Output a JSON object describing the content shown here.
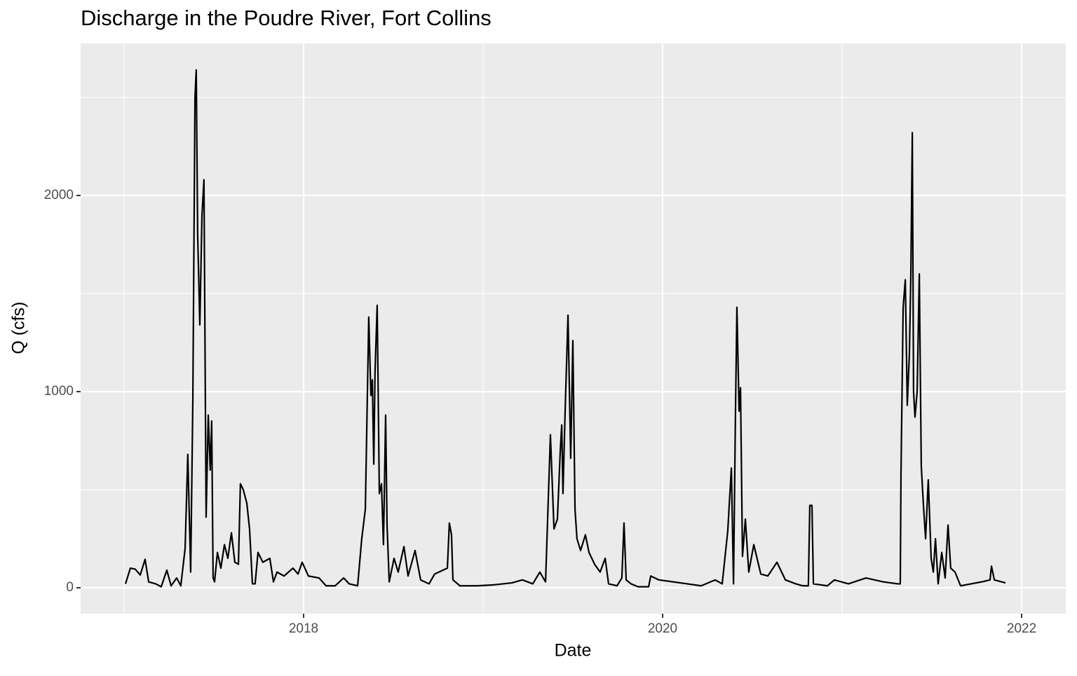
{
  "chart_data": {
    "type": "line",
    "title": "Discharge in the Poudre River, Fort Collins",
    "x_label": "Date",
    "y_label": "Q (cfs)",
    "xlim": [
      2016.758,
      2022.246
    ],
    "ylim": [
      -132,
      2775
    ],
    "xticks": [
      2018,
      2020,
      2022
    ],
    "yticks": [
      0,
      1000,
      2000
    ],
    "minor_xticks": [
      2017,
      2019,
      2021
    ],
    "minor_yticks": [
      500,
      1500,
      2500
    ],
    "grid": true,
    "panel_color": "#ebebeb",
    "grid_color": "#ffffff",
    "series": [
      {
        "color": "#000000",
        "x": [
          2017.008,
          2017.035,
          2017.062,
          2017.09,
          2017.117,
          2017.137,
          2017.176,
          2017.207,
          2017.238,
          2017.262,
          2017.293,
          2017.316,
          2017.34,
          2017.355,
          2017.371,
          2017.383,
          2017.395,
          2017.402,
          2017.41,
          2017.422,
          2017.434,
          2017.445,
          2017.457,
          2017.469,
          2017.48,
          2017.488,
          2017.496,
          2017.504,
          2017.52,
          2017.539,
          2017.559,
          2017.578,
          2017.598,
          2017.617,
          2017.637,
          2017.648,
          2017.664,
          2017.684,
          2017.699,
          2017.715,
          2017.73,
          2017.746,
          2017.773,
          2017.812,
          2017.832,
          2017.852,
          2017.891,
          2017.941,
          2017.969,
          2017.992,
          2018.027,
          2018.086,
          2018.125,
          2018.176,
          2018.223,
          2018.254,
          2018.301,
          2018.324,
          2018.344,
          2018.363,
          2018.375,
          2018.383,
          2018.391,
          2018.398,
          2018.41,
          2018.422,
          2018.434,
          2018.445,
          2018.457,
          2018.465,
          2018.477,
          2018.504,
          2018.527,
          2018.559,
          2018.582,
          2018.621,
          2018.652,
          2018.699,
          2018.73,
          2018.777,
          2018.801,
          2018.812,
          2018.824,
          2018.832,
          2018.871,
          2018.965,
          2019.062,
          2019.16,
          2019.219,
          2019.277,
          2019.316,
          2019.348,
          2019.375,
          2019.395,
          2019.414,
          2019.43,
          2019.438,
          2019.445,
          2019.457,
          2019.473,
          2019.488,
          2019.5,
          2019.512,
          2019.523,
          2019.543,
          2019.57,
          2019.59,
          2019.621,
          2019.652,
          2019.68,
          2019.699,
          2019.746,
          2019.773,
          2019.785,
          2019.797,
          2019.824,
          2019.863,
          2019.922,
          2019.934,
          2019.98,
          2020.059,
          2020.137,
          2020.215,
          2020.293,
          2020.332,
          2020.363,
          2020.383,
          2020.395,
          2020.406,
          2020.414,
          2020.426,
          2020.434,
          2020.445,
          2020.461,
          2020.48,
          2020.508,
          2020.547,
          2020.586,
          2020.637,
          2020.684,
          2020.742,
          2020.781,
          2020.812,
          2020.82,
          2020.832,
          2020.84,
          2020.918,
          2020.957,
          2021.035,
          2021.133,
          2021.23,
          2021.309,
          2021.324,
          2021.328,
          2021.34,
          2021.352,
          2021.363,
          2021.375,
          2021.383,
          2021.391,
          2021.398,
          2021.406,
          2021.418,
          2021.43,
          2021.441,
          2021.453,
          2021.465,
          2021.48,
          2021.496,
          2021.508,
          2021.52,
          2021.535,
          2021.555,
          2021.574,
          2021.59,
          2021.605,
          2021.629,
          2021.66,
          2021.719,
          2021.777,
          2021.824,
          2021.832,
          2021.848,
          2021.91
        ],
        "values": [
          20,
          100,
          95,
          65,
          145,
          30,
          20,
          5,
          90,
          10,
          50,
          10,
          200,
          680,
          80,
          950,
          2500,
          2640,
          1800,
          1340,
          1900,
          2080,
          360,
          880,
          600,
          850,
          50,
          30,
          180,
          100,
          220,
          150,
          280,
          130,
          120,
          530,
          500,
          430,
          300,
          20,
          20,
          180,
          130,
          150,
          30,
          80,
          60,
          100,
          70,
          130,
          60,
          50,
          10,
          10,
          50,
          20,
          10,
          250,
          400,
          1380,
          980,
          1060,
          630,
          1100,
          1440,
          480,
          530,
          220,
          880,
          320,
          30,
          150,
          80,
          210,
          60,
          190,
          40,
          20,
          70,
          90,
          100,
          330,
          270,
          40,
          10,
          10,
          15,
          25,
          40,
          20,
          80,
          30,
          780,
          300,
          350,
          700,
          830,
          480,
          900,
          1390,
          660,
          1260,
          400,
          250,
          190,
          270,
          180,
          120,
          80,
          150,
          20,
          10,
          50,
          330,
          40,
          20,
          5,
          5,
          60,
          40,
          30,
          20,
          10,
          40,
          20,
          290,
          610,
          20,
          900,
          1430,
          900,
          1020,
          160,
          350,
          80,
          220,
          70,
          60,
          130,
          40,
          20,
          10,
          10,
          420,
          420,
          20,
          10,
          40,
          20,
          50,
          30,
          20,
          20,
          580,
          1430,
          1570,
          930,
          1200,
          1600,
          2320,
          1000,
          870,
          1000,
          1600,
          620,
          420,
          250,
          550,
          150,
          80,
          250,
          20,
          180,
          50,
          320,
          100,
          80,
          10,
          20,
          30,
          40,
          110,
          40,
          25
        ]
      }
    ]
  }
}
